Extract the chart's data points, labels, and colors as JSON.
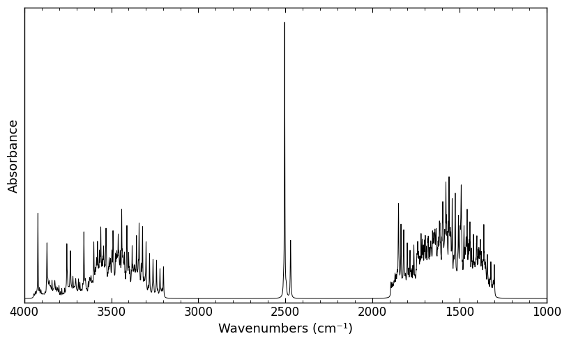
{
  "xlabel": "Wavenumbers (cm⁻¹)",
  "ylabel": "Absorbance",
  "xlim": [
    4000,
    1000
  ],
  "background_color": "#ffffff",
  "line_color": "#000000",
  "line_width": 0.7,
  "xticks": [
    4000,
    3500,
    3000,
    2500,
    2000,
    1500,
    1000
  ],
  "xlabel_fontsize": 13,
  "ylabel_fontsize": 13,
  "tick_fontsize": 12
}
